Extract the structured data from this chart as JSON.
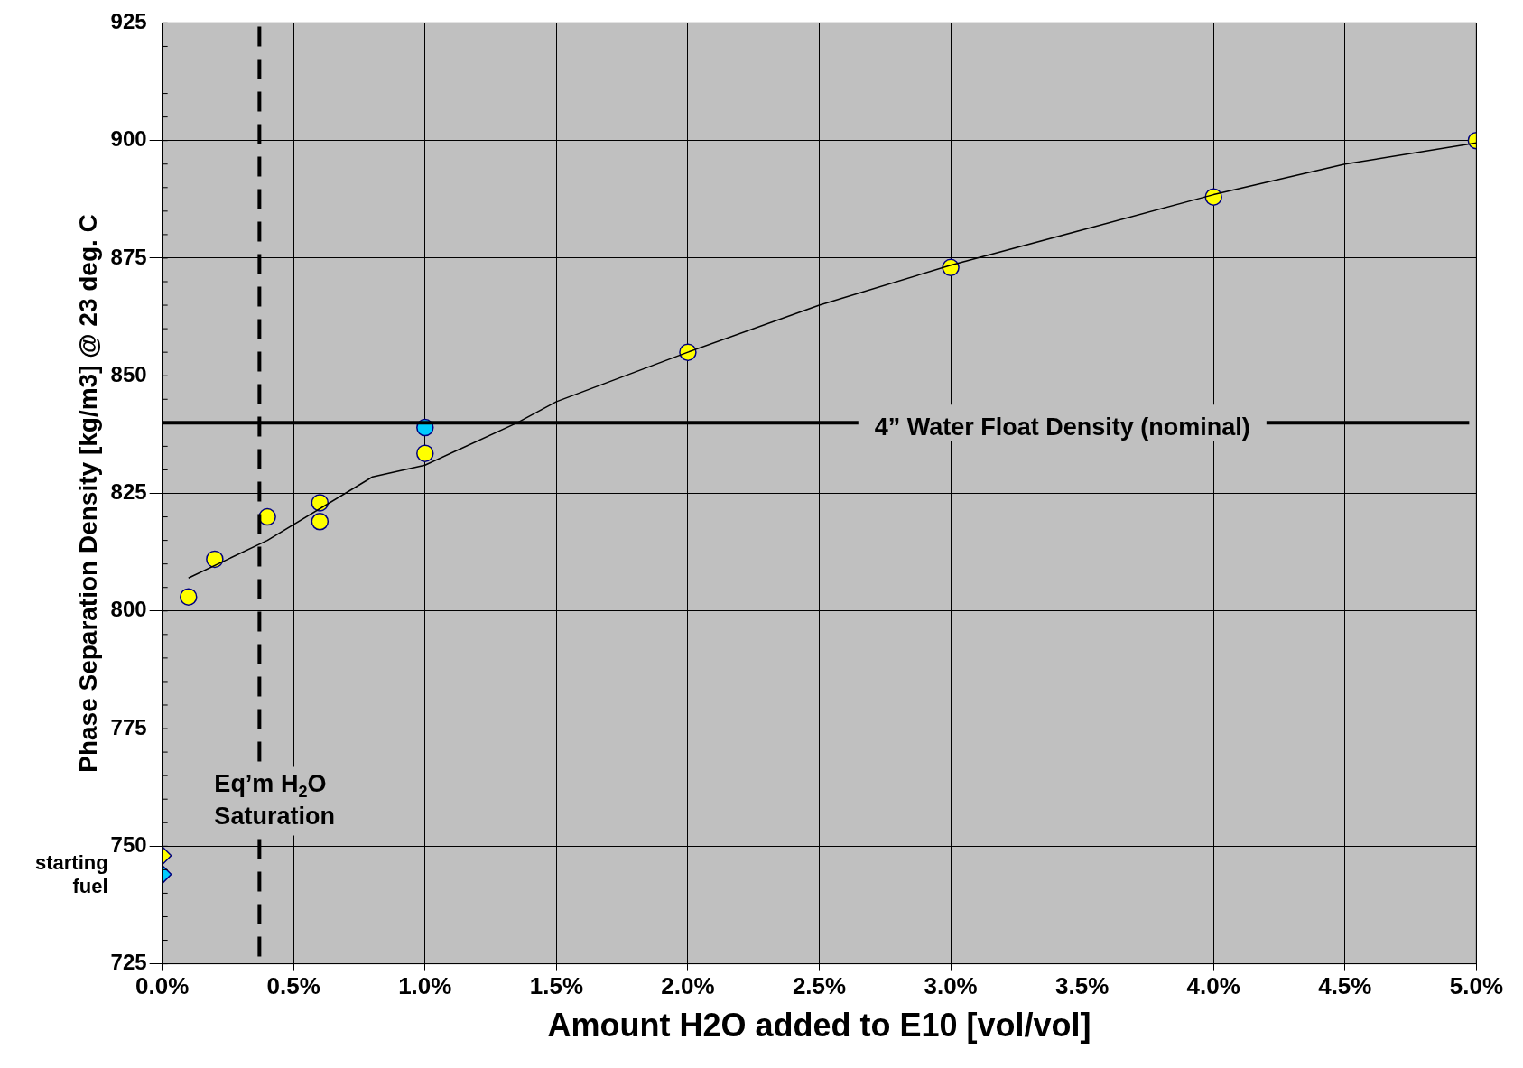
{
  "chart_data": {
    "type": "scatter",
    "xlabel": "Amount H2O added to E10 [vol/vol]",
    "ylabel": "Phase Separation Density [kg/m3] @ 23 deg. C",
    "xlim": [
      0,
      5
    ],
    "xticks": [
      {
        "value": 0,
        "label": "0.0%"
      },
      {
        "value": 0.5,
        "label": "0.5%"
      },
      {
        "value": 1,
        "label": "1.0%"
      },
      {
        "value": 1.5,
        "label": "1.5%"
      },
      {
        "value": 2,
        "label": "2.0%"
      },
      {
        "value": 2.5,
        "label": "2.5%"
      },
      {
        "value": 3,
        "label": "3.0%"
      },
      {
        "value": 3.5,
        "label": "3.5%"
      },
      {
        "value": 4,
        "label": "4.0%"
      },
      {
        "value": 4.5,
        "label": "4.5%"
      },
      {
        "value": 5,
        "label": "5.0%"
      }
    ],
    "ylim": [
      725,
      925
    ],
    "yticks": [
      725,
      750,
      775,
      800,
      825,
      850,
      875,
      900,
      925
    ],
    "grid": true,
    "legend": false,
    "series": [
      {
        "type": "line",
        "color": "#000000",
        "marker": "none",
        "x": [
          0.1,
          0.4,
          0.8,
          1.0,
          1.35,
          1.5,
          2.0,
          2.5,
          3.0,
          3.5,
          4.0,
          4.5,
          5.0
        ],
        "values": [
          807,
          815,
          828.5,
          831,
          840,
          844.5,
          855,
          865,
          873.5,
          881,
          888.5,
          895,
          899.5
        ]
      },
      {
        "color": "#ffff00",
        "marker": "circle",
        "x": [
          0.1,
          0.2,
          0.4,
          0.6,
          0.6,
          1.0,
          2.0,
          3.0,
          4.0,
          5.0
        ],
        "values": [
          803,
          811,
          820,
          823,
          819,
          833.5,
          855,
          873,
          888,
          900
        ]
      },
      {
        "color": "#00ccff",
        "marker": "circle",
        "x": [
          1.0
        ],
        "values": [
          839
        ]
      },
      {
        "color": "#ffff00",
        "marker": "diamond",
        "x": [
          0
        ],
        "values": [
          748
        ]
      },
      {
        "color": "#00ccff",
        "marker": "diamond",
        "x": [
          0
        ],
        "values": [
          744
        ]
      }
    ],
    "ref_lines": [
      {
        "axis": "y",
        "value": 840,
        "label": "4” Water Float Density (nominal)",
        "color": "#000000",
        "line_style": "solid"
      },
      {
        "axis": "x",
        "value": 0.37,
        "label": "Eq’m H$_{2}$O\nSaturation",
        "color": "#000000",
        "line_style": "dashed"
      }
    ],
    "annotations": [
      {
        "text": "starting\nfuel",
        "x": 0,
        "y": 746
      }
    ]
  }
}
